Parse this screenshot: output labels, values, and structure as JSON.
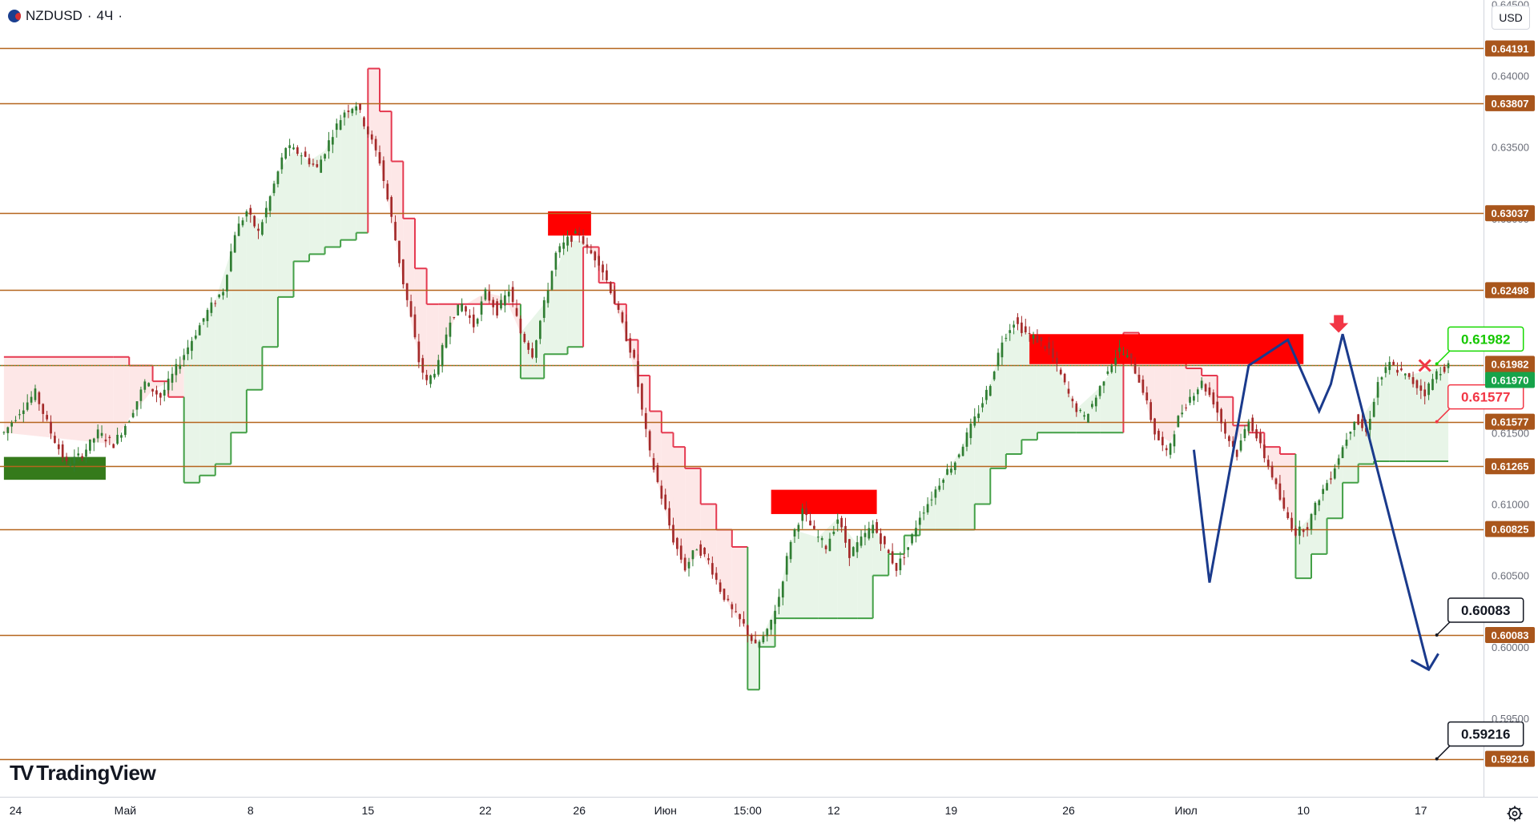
{
  "header": {
    "symbol": "NZDUSD",
    "interval": "4Ч",
    "sep": "·",
    "flag_icon": "nzd-usd-flag-icon"
  },
  "currency": "USD",
  "logo": {
    "mark": "TV",
    "text": "TradingView"
  },
  "colors": {
    "level_line": "#b5651d",
    "level_tag_bg": "#a9561c",
    "up_candle": "#2f7d32",
    "down_candle": "#a42a2a",
    "trail_up": "#43a047",
    "trail_down": "#e53950",
    "fill_up": "#e6f4e6",
    "fill_down": "#fde4e4",
    "zone_red": "#ff0000",
    "zone_green": "#357a1b",
    "forecast": "#1a3a8c",
    "price_tag": "#16a34a"
  },
  "chart_data": {
    "type": "candlestick",
    "symbol": "NZDUSD",
    "interval": "4Ч",
    "ylim": [
      0.5895,
      0.6453
    ],
    "y_ticks": [
      "0.64500",
      "0.64000",
      "0.63500",
      "0.63000",
      "0.61500",
      "0.61000",
      "0.60500",
      "0.60000",
      "0.59500"
    ],
    "x_ticks": [
      {
        "label": "24",
        "t": -29
      },
      {
        "label": "Май",
        "t": -1
      },
      {
        "label": "8",
        "t": 31
      },
      {
        "label": "15",
        "t": 61
      },
      {
        "label": "22",
        "t": 91
      },
      {
        "label": "26",
        "t": 115
      },
      {
        "label": "Июн",
        "t": 137
      },
      {
        "label": "15:00",
        "t": 158
      },
      {
        "label": "12",
        "t": 180
      },
      {
        "label": "19",
        "t": 210
      },
      {
        "label": "26",
        "t": 240
      },
      {
        "label": "Июл",
        "t": 270
      },
      {
        "label": "10",
        "t": 300
      },
      {
        "label": "17",
        "t": 330
      }
    ],
    "levels": [
      "0.64191",
      "0.63807",
      "0.63037",
      "0.62498",
      "0.61970",
      "0.61577",
      "0.61265",
      "0.60825",
      "0.60083",
      "0.59216"
    ],
    "last_price": "0.61970",
    "annotations": [
      {
        "label": "0.61982",
        "style": "target"
      },
      {
        "label": "0.61577",
        "style": "stop"
      },
      {
        "label": "0.60083",
        "style": "tp"
      },
      {
        "label": "0.59216",
        "style": "tp"
      }
    ],
    "price_path": [
      [
        -32,
        0.615
      ],
      [
        -28,
        0.6165
      ],
      [
        -24,
        0.6178
      ],
      [
        -20,
        0.615
      ],
      [
        -16,
        0.6128
      ],
      [
        -12,
        0.6135
      ],
      [
        -8,
        0.615
      ],
      [
        -4,
        0.6142
      ],
      [
        0,
        0.616
      ],
      [
        4,
        0.6185
      ],
      [
        8,
        0.6175
      ],
      [
        12,
        0.6195
      ],
      [
        16,
        0.6215
      ],
      [
        20,
        0.6235
      ],
      [
        24,
        0.625
      ],
      [
        27,
        0.629
      ],
      [
        30,
        0.6305
      ],
      [
        33,
        0.629
      ],
      [
        36,
        0.6315
      ],
      [
        40,
        0.635
      ],
      [
        44,
        0.6345
      ],
      [
        48,
        0.6335
      ],
      [
        52,
        0.636
      ],
      [
        55,
        0.6375
      ],
      [
        58,
        0.638
      ],
      [
        61,
        0.636
      ],
      [
        64,
        0.634
      ],
      [
        67,
        0.63
      ],
      [
        70,
        0.6255
      ],
      [
        72,
        0.623
      ],
      [
        74,
        0.62
      ],
      [
        76,
        0.6185
      ],
      [
        79,
        0.6198
      ],
      [
        82,
        0.623
      ],
      [
        85,
        0.624
      ],
      [
        88,
        0.6225
      ],
      [
        91,
        0.6248
      ],
      [
        94,
        0.6235
      ],
      [
        97,
        0.625
      ],
      [
        100,
        0.622
      ],
      [
        103,
        0.6205
      ],
      [
        106,
        0.624
      ],
      [
        109,
        0.6275
      ],
      [
        112,
        0.6285
      ],
      [
        115,
        0.629
      ],
      [
        117,
        0.6278
      ],
      [
        120,
        0.627
      ],
      [
        123,
        0.625
      ],
      [
        126,
        0.6225
      ],
      [
        129,
        0.62
      ],
      [
        131,
        0.6165
      ],
      [
        133,
        0.6135
      ],
      [
        136,
        0.6105
      ],
      [
        139,
        0.6075
      ],
      [
        142,
        0.6055
      ],
      [
        145,
        0.607
      ],
      [
        148,
        0.606
      ],
      [
        151,
        0.604
      ],
      [
        154,
        0.6025
      ],
      [
        157,
        0.6015
      ],
      [
        160,
        0.6
      ],
      [
        163,
        0.601
      ],
      [
        166,
        0.6035
      ],
      [
        169,
        0.6075
      ],
      [
        172,
        0.6095
      ],
      [
        175,
        0.608
      ],
      [
        178,
        0.607
      ],
      [
        181,
        0.609
      ],
      [
        184,
        0.6065
      ],
      [
        187,
        0.6075
      ],
      [
        190,
        0.6085
      ],
      [
        193,
        0.607
      ],
      [
        196,
        0.6055
      ],
      [
        199,
        0.607
      ],
      [
        202,
        0.6092
      ],
      [
        205,
        0.6105
      ],
      [
        208,
        0.612
      ],
      [
        211,
        0.613
      ],
      [
        214,
        0.6148
      ],
      [
        217,
        0.6165
      ],
      [
        220,
        0.6185
      ],
      [
        223,
        0.6215
      ],
      [
        226,
        0.6228
      ],
      [
        229,
        0.622
      ],
      [
        232,
        0.6215
      ],
      [
        235,
        0.6208
      ],
      [
        238,
        0.619
      ],
      [
        241,
        0.617
      ],
      [
        244,
        0.616
      ],
      [
        247,
        0.6175
      ],
      [
        250,
        0.6195
      ],
      [
        253,
        0.6208
      ],
      [
        256,
        0.62
      ],
      [
        259,
        0.618
      ],
      [
        262,
        0.615
      ],
      [
        265,
        0.6135
      ],
      [
        268,
        0.616
      ],
      [
        271,
        0.6175
      ],
      [
        274,
        0.6185
      ],
      [
        277,
        0.6172
      ],
      [
        280,
        0.615
      ],
      [
        283,
        0.6135
      ],
      [
        286,
        0.616
      ],
      [
        289,
        0.614
      ],
      [
        292,
        0.612
      ],
      [
        295,
        0.6095
      ],
      [
        298,
        0.608
      ],
      [
        301,
        0.6085
      ],
      [
        304,
        0.6105
      ],
      [
        307,
        0.612
      ],
      [
        310,
        0.614
      ],
      [
        313,
        0.616
      ],
      [
        316,
        0.615
      ],
      [
        319,
        0.6185
      ],
      [
        322,
        0.6198
      ],
      [
        325,
        0.6192
      ],
      [
        328,
        0.6185
      ],
      [
        331,
        0.6178
      ],
      [
        334,
        0.6192
      ],
      [
        337,
        0.6197
      ]
    ],
    "trail_line": [
      [
        -32,
        "dn",
        0.6203
      ],
      [
        -4,
        "dn",
        0.6203
      ],
      [
        0,
        "dn",
        0.6197
      ],
      [
        6,
        "dn",
        0.6186
      ],
      [
        10,
        "dn",
        0.6175
      ],
      [
        14,
        "up",
        0.6115
      ],
      [
        18,
        "up",
        0.612
      ],
      [
        22,
        "up",
        0.6128
      ],
      [
        26,
        "up",
        0.615
      ],
      [
        30,
        "up",
        0.618
      ],
      [
        34,
        "up",
        0.621
      ],
      [
        38,
        "up",
        0.6245
      ],
      [
        42,
        "up",
        0.627
      ],
      [
        46,
        "up",
        0.6275
      ],
      [
        50,
        "up",
        0.628
      ],
      [
        54,
        "up",
        0.6285
      ],
      [
        58,
        "up",
        0.629
      ],
      [
        61,
        "dn",
        0.6405
      ],
      [
        64,
        "dn",
        0.6375
      ],
      [
        67,
        "dn",
        0.634
      ],
      [
        70,
        "dn",
        0.63
      ],
      [
        73,
        "dn",
        0.6265
      ],
      [
        76,
        "dn",
        0.624
      ],
      [
        79,
        "dn",
        0.624
      ],
      [
        84,
        "dn",
        0.624
      ],
      [
        91,
        "dn",
        0.624
      ],
      [
        96,
        "dn",
        0.624
      ],
      [
        100,
        "up",
        0.6188
      ],
      [
        106,
        "up",
        0.6205
      ],
      [
        112,
        "up",
        0.621
      ],
      [
        116,
        "dn",
        0.628
      ],
      [
        120,
        "dn",
        0.6255
      ],
      [
        124,
        "dn",
        0.624
      ],
      [
        127,
        "dn",
        0.6215
      ],
      [
        130,
        "dn",
        0.619
      ],
      [
        133,
        "dn",
        0.6165
      ],
      [
        136,
        "dn",
        0.615
      ],
      [
        139,
        "dn",
        0.614
      ],
      [
        142,
        "dn",
        0.6125
      ],
      [
        146,
        "dn",
        0.61
      ],
      [
        150,
        "dn",
        0.6082
      ],
      [
        154,
        "dn",
        0.607
      ],
      [
        158,
        "up",
        0.597
      ],
      [
        161,
        "up",
        0.6
      ],
      [
        165,
        "up",
        0.602
      ],
      [
        170,
        "up",
        0.602
      ],
      [
        176,
        "up",
        0.602
      ],
      [
        181,
        "up",
        0.602
      ],
      [
        186,
        "up",
        0.602
      ],
      [
        190,
        "up",
        0.605
      ],
      [
        194,
        "up",
        0.6065
      ],
      [
        198,
        "up",
        0.6078
      ],
      [
        202,
        "up",
        0.6082
      ],
      [
        206,
        "up",
        0.6082
      ],
      [
        212,
        "up",
        0.6082
      ],
      [
        216,
        "up",
        0.61
      ],
      [
        220,
        "up",
        0.6125
      ],
      [
        224,
        "up",
        0.6135
      ],
      [
        228,
        "up",
        0.6145
      ],
      [
        232,
        "up",
        0.615
      ],
      [
        236,
        "up",
        0.615
      ],
      [
        242,
        "up",
        0.615
      ],
      [
        248,
        "up",
        0.615
      ],
      [
        254,
        "dn",
        0.622
      ],
      [
        258,
        "dn",
        0.6215
      ],
      [
        262,
        "dn",
        0.6205
      ],
      [
        266,
        "dn",
        0.62
      ],
      [
        270,
        "dn",
        0.6195
      ],
      [
        274,
        "dn",
        0.619
      ],
      [
        278,
        "dn",
        0.6175
      ],
      [
        282,
        "dn",
        0.6155
      ],
      [
        286,
        "dn",
        0.615
      ],
      [
        290,
        "dn",
        0.614
      ],
      [
        294,
        "dn",
        0.6135
      ],
      [
        298,
        "up",
        0.6048
      ],
      [
        302,
        "up",
        0.6065
      ],
      [
        306,
        "up",
        0.609
      ],
      [
        310,
        "up",
        0.6115
      ],
      [
        314,
        "up",
        0.6128
      ],
      [
        318,
        "up",
        0.613
      ],
      [
        322,
        "up",
        0.613
      ],
      [
        326,
        "up",
        0.613
      ],
      [
        337,
        "up",
        0.613
      ]
    ],
    "zones": [
      {
        "kind": "supply",
        "t0": 107,
        "t1": 118,
        "p0": 0.6288,
        "p1": 0.6305
      },
      {
        "kind": "supply",
        "t0": 164,
        "t1": 191,
        "p0": 0.6093,
        "p1": 0.611
      },
      {
        "kind": "supply",
        "t0": 230,
        "t1": 300,
        "p0": 0.6198,
        "p1": 0.6219
      },
      {
        "kind": "demand",
        "t0": -32,
        "t1": -6,
        "p0": 0.6117,
        "p1": 0.6133
      }
    ],
    "forecast_path": [
      [
        272,
        0.6138
      ],
      [
        276,
        0.6045
      ],
      [
        286,
        0.6197
      ],
      [
        296,
        0.6215
      ],
      [
        304,
        0.6165
      ],
      [
        307,
        0.6184
      ],
      [
        310,
        0.6219
      ],
      [
        332,
        0.5984
      ]
    ],
    "forecast_arrow_end": [
      332,
      0.5984
    ],
    "signal_marker": {
      "t": 309,
      "p": 0.622,
      "label": "sell-arrow-icon"
    },
    "cross_marker": {
      "t": 331,
      "p": 0.6197,
      "label": "close-cross-icon"
    }
  }
}
